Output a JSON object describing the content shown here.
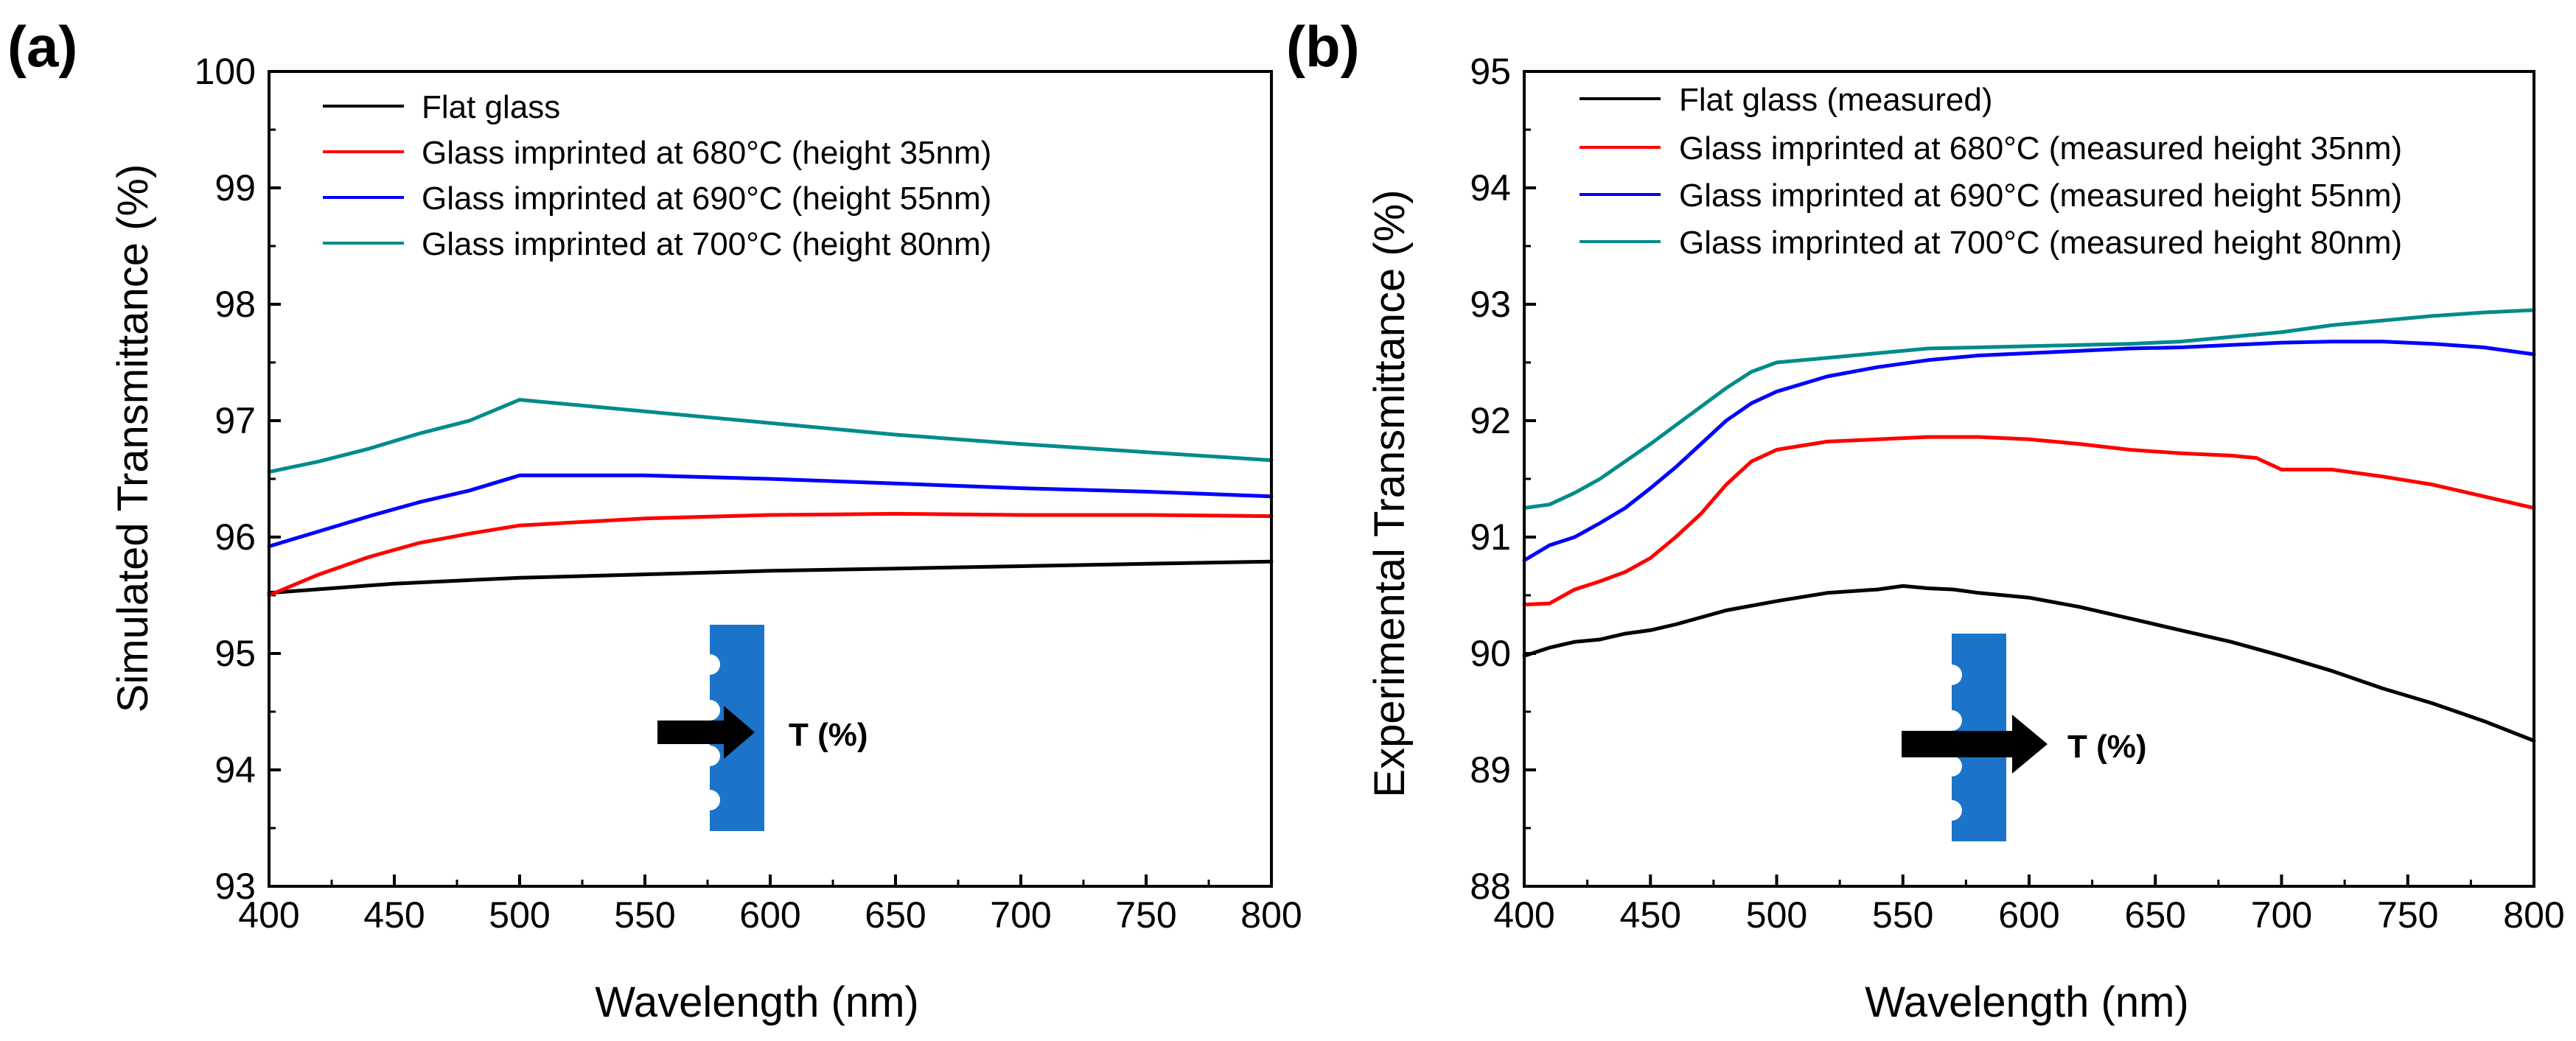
{
  "chart_data": [
    {
      "id": "a",
      "panel_label": "(a)",
      "type": "line",
      "xlabel": "Wavelength (nm)",
      "ylabel": "Simulated Transmittance (%)",
      "xlim": [
        400,
        800
      ],
      "ylim": [
        93,
        100
      ],
      "xticks": [
        "400",
        "450",
        "500",
        "550",
        "600",
        "650",
        "700",
        "750",
        "800"
      ],
      "yticks": [
        "93",
        "94",
        "95",
        "96",
        "97",
        "98",
        "99",
        "100"
      ],
      "grid": false,
      "legend_position": "top-left",
      "inset_label": "T (%)",
      "series": [
        {
          "name": "Flat glass",
          "color": "#000000",
          "x": [
            400,
            450,
            500,
            550,
            600,
            650,
            700,
            750,
            800
          ],
          "values": [
            95.52,
            95.6,
            95.65,
            95.68,
            95.71,
            95.73,
            95.75,
            95.77,
            95.79
          ]
        },
        {
          "name": "Glass imprinted at 680°C (height 35nm)",
          "color": "#ff0000",
          "x": [
            400,
            420,
            440,
            460,
            480,
            500,
            550,
            600,
            650,
            700,
            750,
            800
          ],
          "values": [
            95.5,
            95.68,
            95.83,
            95.95,
            96.03,
            96.1,
            96.16,
            96.19,
            96.2,
            96.19,
            96.19,
            96.18
          ]
        },
        {
          "name": "Glass imprinted at 690°C (height 55nm)",
          "color": "#0000ff",
          "x": [
            400,
            420,
            440,
            460,
            480,
            500,
            550,
            600,
            650,
            700,
            750,
            800
          ],
          "values": [
            95.92,
            96.05,
            96.18,
            96.3,
            96.4,
            96.53,
            96.53,
            96.5,
            96.46,
            96.42,
            96.39,
            96.35
          ]
        },
        {
          "name": "Glass imprinted at 700°C (height 80nm)",
          "color": "#008b8b",
          "x": [
            400,
            420,
            440,
            460,
            480,
            500,
            550,
            600,
            650,
            700,
            750,
            800
          ],
          "values": [
            96.56,
            96.65,
            96.76,
            96.89,
            97.0,
            97.18,
            97.08,
            96.98,
            96.88,
            96.8,
            96.73,
            96.66
          ]
        }
      ]
    },
    {
      "id": "b",
      "panel_label": "(b)",
      "type": "line",
      "xlabel": "Wavelength (nm)",
      "ylabel": "Experimental Transmittance (%)",
      "xlim": [
        400,
        800
      ],
      "ylim": [
        88,
        95
      ],
      "xticks": [
        "400",
        "450",
        "500",
        "550",
        "600",
        "650",
        "700",
        "750",
        "800"
      ],
      "yticks": [
        "88",
        "89",
        "90",
        "91",
        "92",
        "93",
        "94",
        "95"
      ],
      "grid": false,
      "legend_position": "top-left",
      "inset_label": "T (%)",
      "series": [
        {
          "name": "Flat glass (measured)",
          "color": "#000000",
          "x": [
            400,
            410,
            420,
            430,
            440,
            450,
            460,
            480,
            500,
            520,
            540,
            550,
            560,
            570,
            580,
            600,
            620,
            640,
            660,
            680,
            700,
            720,
            740,
            760,
            780,
            800
          ],
          "values": [
            89.98,
            90.05,
            90.1,
            90.12,
            90.17,
            90.2,
            90.25,
            90.37,
            90.45,
            90.52,
            90.55,
            90.58,
            90.56,
            90.55,
            90.52,
            90.48,
            90.4,
            90.3,
            90.2,
            90.1,
            89.98,
            89.85,
            89.7,
            89.57,
            89.42,
            89.25
          ]
        },
        {
          "name": "Glass imprinted at 680°C (measured height 35nm)",
          "color": "#ff0000",
          "x": [
            400,
            410,
            420,
            430,
            440,
            450,
            460,
            470,
            480,
            490,
            500,
            520,
            540,
            560,
            580,
            600,
            620,
            640,
            660,
            680,
            690,
            700,
            720,
            740,
            760,
            780,
            800
          ],
          "values": [
            90.42,
            90.43,
            90.55,
            90.62,
            90.7,
            90.82,
            91.0,
            91.2,
            91.45,
            91.65,
            91.75,
            91.82,
            91.84,
            91.86,
            91.86,
            91.84,
            91.8,
            91.75,
            91.72,
            91.7,
            91.68,
            91.58,
            91.58,
            91.52,
            91.45,
            91.35,
            91.25
          ]
        },
        {
          "name": "Glass imprinted at 690°C (measured height 55nm)",
          "color": "#0000ff",
          "x": [
            400,
            410,
            420,
            430,
            440,
            450,
            460,
            470,
            480,
            490,
            500,
            520,
            540,
            560,
            580,
            600,
            620,
            640,
            660,
            680,
            700,
            720,
            740,
            760,
            780,
            800
          ],
          "values": [
            90.8,
            90.93,
            91.0,
            91.12,
            91.25,
            91.42,
            91.6,
            91.8,
            92.0,
            92.15,
            92.25,
            92.38,
            92.46,
            92.52,
            92.56,
            92.58,
            92.6,
            92.62,
            92.63,
            92.65,
            92.67,
            92.68,
            92.68,
            92.66,
            92.63,
            92.57
          ]
        },
        {
          "name": "Glass imprinted at 700°C (measured height 80nm)",
          "color": "#008b8b",
          "x": [
            400,
            410,
            420,
            430,
            440,
            450,
            460,
            470,
            480,
            490,
            500,
            520,
            540,
            560,
            580,
            600,
            620,
            640,
            660,
            680,
            700,
            720,
            740,
            760,
            780,
            800
          ],
          "values": [
            91.25,
            91.28,
            91.38,
            91.5,
            91.65,
            91.8,
            91.96,
            92.12,
            92.28,
            92.42,
            92.5,
            92.54,
            92.58,
            92.62,
            92.63,
            92.64,
            92.65,
            92.66,
            92.68,
            92.72,
            92.76,
            92.82,
            92.86,
            92.9,
            92.93,
            92.95
          ]
        }
      ]
    }
  ]
}
